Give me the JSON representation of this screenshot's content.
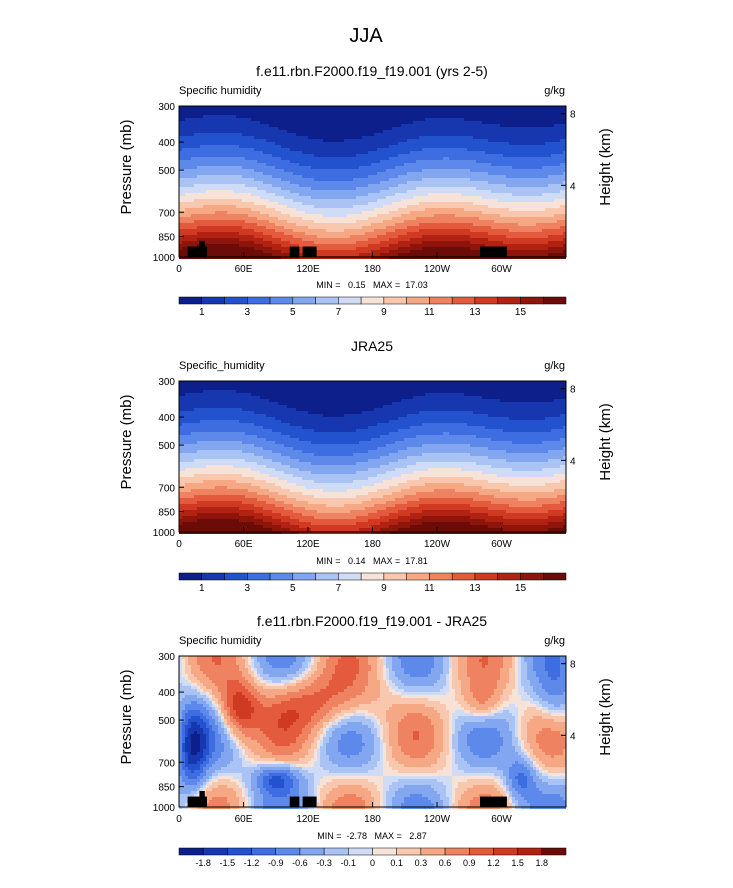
{
  "figure": {
    "title": "JJA"
  },
  "chart_data": [
    {
      "type": "heatmap",
      "title": "f.e11.rbn.F2000.f19_f19.001 (yrs 2-5)",
      "variable": "Specific humidity",
      "units": "g/kg",
      "ylabel": "Pressure (mb)",
      "y2label": "Height (km)",
      "x_ticks": [
        "0",
        "60E",
        "120E",
        "180",
        "120W",
        "60W"
      ],
      "x_tick_values": [
        0,
        60,
        120,
        180,
        240,
        300
      ],
      "x_range": [
        0,
        360
      ],
      "y_ticks": [
        "300",
        "400",
        "500",
        "700",
        "850",
        "1000"
      ],
      "y_tick_values": [
        300,
        400,
        500,
        700,
        850,
        1000
      ],
      "y_range": [
        300,
        1000
      ],
      "height_ticks": [
        "8",
        "4"
      ],
      "height_tick_values": [
        8,
        4
      ],
      "stats": "MIN =   0.15   MAX =  17.03",
      "min": 0.15,
      "max": 17.03,
      "colorbar_labels": [
        "1",
        "3",
        "5",
        "7",
        "9",
        "11",
        "13",
        "15"
      ],
      "colorbar_levels": [
        1,
        2,
        3,
        4,
        5,
        6,
        7,
        8,
        9,
        10,
        11,
        12,
        13,
        14,
        15,
        16
      ],
      "colors": [
        "#0c1f8a",
        "#1737b0",
        "#2352cf",
        "#3d6de0",
        "#5d89ea",
        "#82a6f0",
        "#a9c3f5",
        "#d0dcf6",
        "#f6e2d6",
        "#f8c7ad",
        "#f6a885",
        "#ef8260",
        "#e45a3c",
        "#d03a22",
        "#b22213",
        "#8d150c",
        "#6b0c08"
      ],
      "kind": "model",
      "terrain": true
    },
    {
      "type": "heatmap",
      "title": "JRA25",
      "variable": "Specific_humidity",
      "units": "g/kg",
      "ylabel": "Pressure (mb)",
      "y2label": "Height (km)",
      "x_ticks": [
        "0",
        "60E",
        "120E",
        "180",
        "120W",
        "60W"
      ],
      "x_tick_values": [
        0,
        60,
        120,
        180,
        240,
        300
      ],
      "x_range": [
        0,
        360
      ],
      "y_ticks": [
        "300",
        "400",
        "500",
        "700",
        "850",
        "1000"
      ],
      "y_tick_values": [
        300,
        400,
        500,
        700,
        850,
        1000
      ],
      "y_range": [
        300,
        1000
      ],
      "height_ticks": [
        "8",
        "4"
      ],
      "height_tick_values": [
        8,
        4
      ],
      "stats": "MIN =   0.14   MAX =  17.81",
      "min": 0.14,
      "max": 17.81,
      "colorbar_labels": [
        "1",
        "3",
        "5",
        "7",
        "9",
        "11",
        "13",
        "15"
      ],
      "colorbar_levels": [
        1,
        2,
        3,
        4,
        5,
        6,
        7,
        8,
        9,
        10,
        11,
        12,
        13,
        14,
        15,
        16
      ],
      "colors": [
        "#0c1f8a",
        "#1737b0",
        "#2352cf",
        "#3d6de0",
        "#5d89ea",
        "#82a6f0",
        "#a9c3f5",
        "#d0dcf6",
        "#f6e2d6",
        "#f8c7ad",
        "#f6a885",
        "#ef8260",
        "#e45a3c",
        "#d03a22",
        "#b22213",
        "#8d150c",
        "#6b0c08"
      ],
      "kind": "obs",
      "terrain": false
    },
    {
      "type": "heatmap",
      "title": "f.e11.rbn.F2000.f19_f19.001 - JRA25",
      "variable": "Specific humidity",
      "units": "g/kg",
      "ylabel": "Pressure (mb)",
      "y2label": "Height (km)",
      "x_ticks": [
        "0",
        "60E",
        "120E",
        "180",
        "120W",
        "60W"
      ],
      "x_tick_values": [
        0,
        60,
        120,
        180,
        240,
        300
      ],
      "x_range": [
        0,
        360
      ],
      "y_ticks": [
        "300",
        "400",
        "500",
        "700",
        "850",
        "1000"
      ],
      "y_tick_values": [
        300,
        400,
        500,
        700,
        850,
        1000
      ],
      "y_range": [
        300,
        1000
      ],
      "height_ticks": [
        "8",
        "4"
      ],
      "height_tick_values": [
        8,
        4
      ],
      "stats": "MIN =  -2.78   MAX =   2.87",
      "min": -2.78,
      "max": 2.87,
      "colorbar_labels": [
        "-1.8",
        "-1.5",
        "-1.2",
        "-0.9",
        "-0.6",
        "-0.3",
        "-0.1",
        "0",
        "0.1",
        "0.3",
        "0.6",
        "0.9",
        "1.2",
        "1.5",
        "1.8"
      ],
      "colorbar_levels": [
        -1.8,
        -1.5,
        -1.2,
        -0.9,
        -0.6,
        -0.3,
        -0.1,
        0,
        0.1,
        0.3,
        0.6,
        0.9,
        1.2,
        1.5,
        1.8
      ],
      "colors": [
        "#0c1f8a",
        "#1737b0",
        "#2352cf",
        "#3d6de0",
        "#5d89ea",
        "#82a6f0",
        "#a9c3f5",
        "#d0dcf6",
        "#f6e2d6",
        "#f8c7ad",
        "#f6a885",
        "#ef8260",
        "#e45a3c",
        "#d03a22",
        "#b22213",
        "#6b0c08"
      ],
      "kind": "diff",
      "terrain": true
    }
  ]
}
